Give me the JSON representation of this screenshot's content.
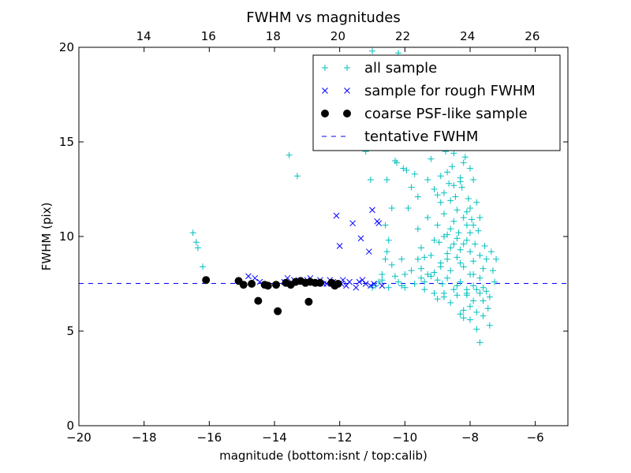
{
  "chart_data": {
    "type": "scatter",
    "title": "FWHM vs magnitudes",
    "xlabel": "magnitude (bottom:isnt / top:calib)",
    "ylabel": "FWHM (pix)",
    "xlim": [
      -20,
      -5
    ],
    "ylim": [
      0,
      20
    ],
    "x_ticks": [
      "−20",
      "−18",
      "−16",
      "−14",
      "−12",
      "−10",
      "−8",
      "−6"
    ],
    "x_tick_values": [
      -20,
      -18,
      -16,
      -14,
      -12,
      -10,
      -8,
      -6
    ],
    "y_ticks": [
      "0",
      "5",
      "10",
      "15",
      "20"
    ],
    "y_tick_values": [
      0,
      5,
      10,
      15,
      20
    ],
    "top_xlim": [
      12,
      27.1
    ],
    "top_x_ticks": [
      "14",
      "16",
      "18",
      "20",
      "22",
      "24",
      "26"
    ],
    "top_x_tick_values": [
      14,
      16,
      18,
      20,
      22,
      24,
      26
    ],
    "grid": false,
    "legend_position": "top-right",
    "tentative_fwhm": 7.52,
    "series": [
      {
        "name": "all sample",
        "marker": "plus",
        "color": "#00bfbf",
        "points": [
          [
            -16.5,
            10.2
          ],
          [
            -16.4,
            9.7
          ],
          [
            -16.35,
            9.4
          ],
          [
            -16.2,
            8.4
          ],
          [
            -13.55,
            14.3
          ],
          [
            -13.3,
            13.2
          ],
          [
            -11.0,
            19.8
          ],
          [
            -10.2,
            19.7
          ],
          [
            -9.8,
            19.4
          ],
          [
            -11.2,
            14.5
          ],
          [
            -11.05,
            13.0
          ],
          [
            -10.55,
            13.0
          ],
          [
            -10.3,
            14.0
          ],
          [
            -10.25,
            13.9
          ],
          [
            -10.05,
            13.6
          ],
          [
            -9.95,
            13.5
          ],
          [
            -10.6,
            10.6
          ],
          [
            -10.4,
            11.5
          ],
          [
            -10.5,
            9.8
          ],
          [
            -10.55,
            9.2
          ],
          [
            -10.6,
            8.8
          ],
          [
            -10.7,
            8.0
          ],
          [
            -10.8,
            7.6
          ],
          [
            -10.9,
            7.4
          ],
          [
            -11.0,
            7.3
          ],
          [
            -10.7,
            7.7
          ],
          [
            -10.5,
            7.3
          ],
          [
            -10.4,
            8.5
          ],
          [
            -10.3,
            7.9
          ],
          [
            -10.2,
            7.6
          ],
          [
            -10.1,
            7.4
          ],
          [
            -10.0,
            7.3
          ],
          [
            -10.0,
            8.0
          ],
          [
            -9.9,
            11.5
          ],
          [
            -9.8,
            12.6
          ],
          [
            -9.7,
            13.3
          ],
          [
            -9.6,
            12.1
          ],
          [
            -9.6,
            10.4
          ],
          [
            -9.5,
            9.4
          ],
          [
            -9.5,
            8.3
          ],
          [
            -9.4,
            7.6
          ],
          [
            -9.4,
            7.2
          ],
          [
            -9.3,
            13.0
          ],
          [
            -9.3,
            11.0
          ],
          [
            -9.2,
            14.1
          ],
          [
            -9.2,
            9.0
          ],
          [
            -9.1,
            12.5
          ],
          [
            -9.1,
            8.1
          ],
          [
            -9.1,
            7.0
          ],
          [
            -9.0,
            14.8
          ],
          [
            -9.0,
            10.6
          ],
          [
            -8.95,
            9.7
          ],
          [
            -8.9,
            13.2
          ],
          [
            -8.9,
            8.6
          ],
          [
            -8.85,
            7.5
          ],
          [
            -8.8,
            12.3
          ],
          [
            -8.8,
            11.2
          ],
          [
            -8.8,
            6.8
          ],
          [
            -8.75,
            14.5
          ],
          [
            -8.7,
            10.1
          ],
          [
            -8.7,
            9.1
          ],
          [
            -8.7,
            7.8
          ],
          [
            -8.65,
            12.8
          ],
          [
            -8.6,
            11.9
          ],
          [
            -8.6,
            8.2
          ],
          [
            -8.6,
            6.5
          ],
          [
            -8.55,
            13.7
          ],
          [
            -8.5,
            10.8
          ],
          [
            -8.5,
            9.6
          ],
          [
            -8.5,
            7.2
          ],
          [
            -8.45,
            12.1
          ],
          [
            -8.4,
            14.9
          ],
          [
            -8.4,
            11.4
          ],
          [
            -8.4,
            8.9
          ],
          [
            -8.4,
            6.9
          ],
          [
            -8.35,
            10.2
          ],
          [
            -8.3,
            13.1
          ],
          [
            -8.3,
            9.3
          ],
          [
            -8.3,
            7.6
          ],
          [
            -8.25,
            12.6
          ],
          [
            -8.2,
            11.0
          ],
          [
            -8.2,
            8.4
          ],
          [
            -8.2,
            5.7
          ],
          [
            -8.15,
            14.2
          ],
          [
            -8.1,
            10.6
          ],
          [
            -8.1,
            9.8
          ],
          [
            -8.1,
            7.0
          ],
          [
            -8.05,
            12.0
          ],
          [
            -8.0,
            11.5
          ],
          [
            -8.0,
            9.2
          ],
          [
            -8.0,
            8.0
          ],
          [
            -8.0,
            6.3
          ],
          [
            -7.95,
            10.9
          ],
          [
            -7.9,
            13.0
          ],
          [
            -7.9,
            8.7
          ],
          [
            -7.9,
            7.4
          ],
          [
            -7.85,
            9.6
          ],
          [
            -7.8,
            11.8
          ],
          [
            -7.8,
            6.0
          ],
          [
            -7.75,
            10.3
          ],
          [
            -7.7,
            9.0
          ],
          [
            -7.7,
            7.8
          ],
          [
            -7.7,
            4.4
          ],
          [
            -7.6,
            8.3
          ],
          [
            -7.6,
            6.6
          ],
          [
            -7.55,
            9.5
          ],
          [
            -7.5,
            7.1
          ],
          [
            -7.5,
            8.8
          ],
          [
            -7.45,
            6.2
          ],
          [
            -7.4,
            5.3
          ],
          [
            -7.35,
            9.2
          ],
          [
            -7.3,
            8.2
          ],
          [
            -7.25,
            7.6
          ],
          [
            -7.2,
            8.8
          ],
          [
            -7.6,
            5.8
          ],
          [
            -7.8,
            5.1
          ],
          [
            -8.0,
            5.6
          ],
          [
            -8.2,
            6.1
          ],
          [
            -8.3,
            5.9
          ],
          [
            -9.0,
            7.7
          ],
          [
            -9.2,
            7.9
          ],
          [
            -9.4,
            8.9
          ],
          [
            -9.6,
            8.8
          ],
          [
            -9.8,
            8.2
          ],
          [
            -8.6,
            10.4
          ],
          [
            -8.8,
            10.0
          ],
          [
            -8.9,
            11.8
          ],
          [
            -9.0,
            12.2
          ],
          [
            -8.5,
            12.7
          ],
          [
            -8.3,
            12.9
          ],
          [
            -8.1,
            11.3
          ],
          [
            -7.9,
            10.6
          ],
          [
            -7.7,
            11.0
          ],
          [
            -8.0,
            10.2
          ],
          [
            -8.2,
            9.6
          ],
          [
            -8.4,
            9.9
          ],
          [
            -8.6,
            9.4
          ],
          [
            -8.7,
            8.8
          ],
          [
            -8.9,
            8.4
          ],
          [
            -9.1,
            9.8
          ],
          [
            -9.3,
            8.0
          ],
          [
            -9.5,
            7.8
          ],
          [
            -9.7,
            7.5
          ],
          [
            -10.1,
            8.8
          ],
          [
            -8.0,
            13.6
          ],
          [
            -8.2,
            13.9
          ],
          [
            -8.5,
            14.4
          ],
          [
            -8.7,
            13.4
          ],
          [
            -8.3,
            8.6
          ],
          [
            -7.9,
            8.0
          ],
          [
            -8.1,
            7.2
          ],
          [
            -8.4,
            7.4
          ],
          [
            -8.8,
            7.0
          ],
          [
            -9.0,
            6.7
          ],
          [
            -7.8,
            7.2
          ],
          [
            -7.7,
            7.0
          ],
          [
            -7.6,
            7.3
          ],
          [
            -7.4,
            6.8
          ],
          [
            -7.9,
            6.6
          ],
          [
            -8.1,
            6.9
          ]
        ]
      },
      {
        "name": "sample for rough FWHM",
        "marker": "x",
        "color": "#0000ff",
        "points": [
          [
            -14.8,
            7.9
          ],
          [
            -14.6,
            7.8
          ],
          [
            -14.45,
            7.6
          ],
          [
            -13.7,
            7.6
          ],
          [
            -13.6,
            7.8
          ],
          [
            -13.4,
            7.7
          ],
          [
            -13.2,
            7.6
          ],
          [
            -13.0,
            7.7
          ],
          [
            -12.9,
            7.8
          ],
          [
            -12.7,
            7.6
          ],
          [
            -12.5,
            7.5
          ],
          [
            -12.3,
            7.7
          ],
          [
            -12.2,
            7.6
          ],
          [
            -12.1,
            11.1
          ],
          [
            -12.0,
            9.5
          ],
          [
            -11.95,
            7.5
          ],
          [
            -11.8,
            7.4
          ],
          [
            -11.7,
            7.6
          ],
          [
            -11.6,
            10.7
          ],
          [
            -11.5,
            7.3
          ],
          [
            -11.4,
            7.6
          ],
          [
            -11.35,
            9.9
          ],
          [
            -11.3,
            7.7
          ],
          [
            -11.2,
            7.5
          ],
          [
            -11.1,
            9.2
          ],
          [
            -11.05,
            7.4
          ],
          [
            -11.0,
            11.4
          ],
          [
            -10.95,
            7.5
          ],
          [
            -10.85,
            10.8
          ],
          [
            -10.8,
            10.7
          ],
          [
            -10.7,
            7.4
          ],
          [
            -12.4,
            7.5
          ],
          [
            -12.6,
            7.7
          ],
          [
            -11.9,
            7.7
          ],
          [
            -12.15,
            7.5
          ]
        ]
      },
      {
        "name": "coarse PSF-like sample",
        "marker": "circle",
        "color": "#000000",
        "points": [
          [
            -16.1,
            7.7
          ],
          [
            -15.1,
            7.65
          ],
          [
            -14.95,
            7.45
          ],
          [
            -14.7,
            7.5
          ],
          [
            -14.5,
            6.6
          ],
          [
            -14.3,
            7.45
          ],
          [
            -14.2,
            7.4
          ],
          [
            -13.95,
            7.45
          ],
          [
            -13.9,
            6.05
          ],
          [
            -13.65,
            7.55
          ],
          [
            -13.5,
            7.45
          ],
          [
            -13.35,
            7.6
          ],
          [
            -13.2,
            7.65
          ],
          [
            -13.05,
            7.55
          ],
          [
            -12.95,
            6.55
          ],
          [
            -12.9,
            7.6
          ],
          [
            -12.75,
            7.55
          ],
          [
            -12.6,
            7.55
          ],
          [
            -12.25,
            7.55
          ],
          [
            -12.15,
            7.4
          ],
          [
            -12.05,
            7.5
          ]
        ]
      },
      {
        "name": "tentative FWHM",
        "marker": "dashed-line",
        "color": "#0000ff"
      }
    ]
  }
}
